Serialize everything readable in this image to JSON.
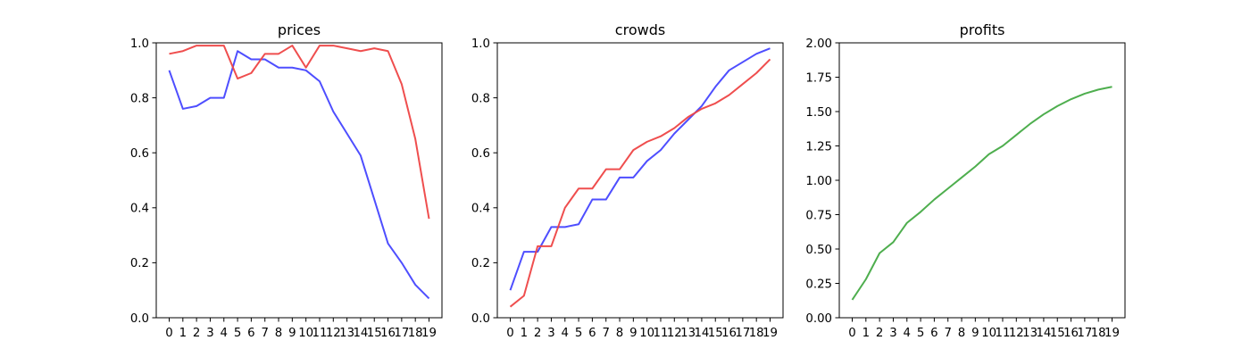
{
  "chart_data": [
    {
      "type": "line",
      "title": "prices",
      "xlabel": "",
      "ylabel": "",
      "x": [
        0,
        1,
        2,
        3,
        4,
        5,
        6,
        7,
        8,
        9,
        10,
        11,
        12,
        13,
        14,
        15,
        16,
        17,
        18,
        19
      ],
      "xticks": [
        "0",
        "1",
        "2",
        "3",
        "4",
        "5",
        "6",
        "7",
        "8",
        "9",
        "10",
        "11",
        "12",
        "13",
        "14",
        "15",
        "16",
        "17",
        "18",
        "19"
      ],
      "ylim": [
        0,
        1.0
      ],
      "yticks": [
        "0.0",
        "0.2",
        "0.4",
        "0.6",
        "0.8",
        "1.0"
      ],
      "grid": false,
      "series": [
        {
          "color": "#4444ff",
          "values": [
            0.9,
            0.76,
            0.77,
            0.8,
            0.8,
            0.97,
            0.94,
            0.94,
            0.91,
            0.91,
            0.9,
            0.86,
            0.75,
            0.67,
            0.59,
            0.43,
            0.27,
            0.2,
            0.12,
            0.07
          ]
        },
        {
          "color": "#ee4444",
          "values": [
            0.96,
            0.97,
            0.99,
            0.99,
            0.99,
            0.87,
            0.89,
            0.96,
            0.96,
            0.99,
            0.91,
            0.99,
            0.99,
            0.98,
            0.97,
            0.98,
            0.97,
            0.85,
            0.65,
            0.36
          ]
        }
      ]
    },
    {
      "type": "line",
      "title": "crowds",
      "xlabel": "",
      "ylabel": "",
      "x": [
        0,
        1,
        2,
        3,
        4,
        5,
        6,
        7,
        8,
        9,
        10,
        11,
        12,
        13,
        14,
        15,
        16,
        17,
        18,
        19
      ],
      "xticks": [
        "0",
        "1",
        "2",
        "3",
        "4",
        "5",
        "6",
        "7",
        "8",
        "9",
        "10",
        "11",
        "12",
        "13",
        "14",
        "15",
        "16",
        "17",
        "18",
        "19"
      ],
      "ylim": [
        0,
        1.0
      ],
      "yticks": [
        "0.0",
        "0.2",
        "0.4",
        "0.6",
        "0.8",
        "1.0"
      ],
      "grid": false,
      "series": [
        {
          "color": "#4444ff",
          "values": [
            0.1,
            0.24,
            0.24,
            0.33,
            0.33,
            0.34,
            0.43,
            0.43,
            0.51,
            0.51,
            0.57,
            0.61,
            0.67,
            0.72,
            0.77,
            0.84,
            0.9,
            0.93,
            0.96,
            0.98
          ]
        },
        {
          "color": "#ee4444",
          "values": [
            0.04,
            0.08,
            0.26,
            0.26,
            0.4,
            0.47,
            0.47,
            0.54,
            0.54,
            0.61,
            0.64,
            0.66,
            0.69,
            0.73,
            0.76,
            0.78,
            0.81,
            0.85,
            0.89,
            0.94
          ]
        }
      ]
    },
    {
      "type": "line",
      "title": "profits",
      "xlabel": "",
      "ylabel": "",
      "x": [
        0,
        1,
        2,
        3,
        4,
        5,
        6,
        7,
        8,
        9,
        10,
        11,
        12,
        13,
        14,
        15,
        16,
        17,
        18,
        19
      ],
      "xticks": [
        "0",
        "1",
        "2",
        "3",
        "4",
        "5",
        "6",
        "7",
        "8",
        "9",
        "10",
        "11",
        "12",
        "13",
        "14",
        "15",
        "16",
        "17",
        "18",
        "19"
      ],
      "ylim": [
        0,
        2.0
      ],
      "yticks": [
        "0.00",
        "0.25",
        "0.50",
        "0.75",
        "1.00",
        "1.25",
        "1.50",
        "1.75",
        "2.00"
      ],
      "grid": false,
      "series": [
        {
          "color": "#44aa44",
          "values": [
            0.13,
            0.28,
            0.47,
            0.55,
            0.69,
            0.77,
            0.86,
            0.94,
            1.02,
            1.1,
            1.19,
            1.25,
            1.33,
            1.41,
            1.48,
            1.54,
            1.59,
            1.63,
            1.66,
            1.68
          ]
        }
      ]
    }
  ]
}
